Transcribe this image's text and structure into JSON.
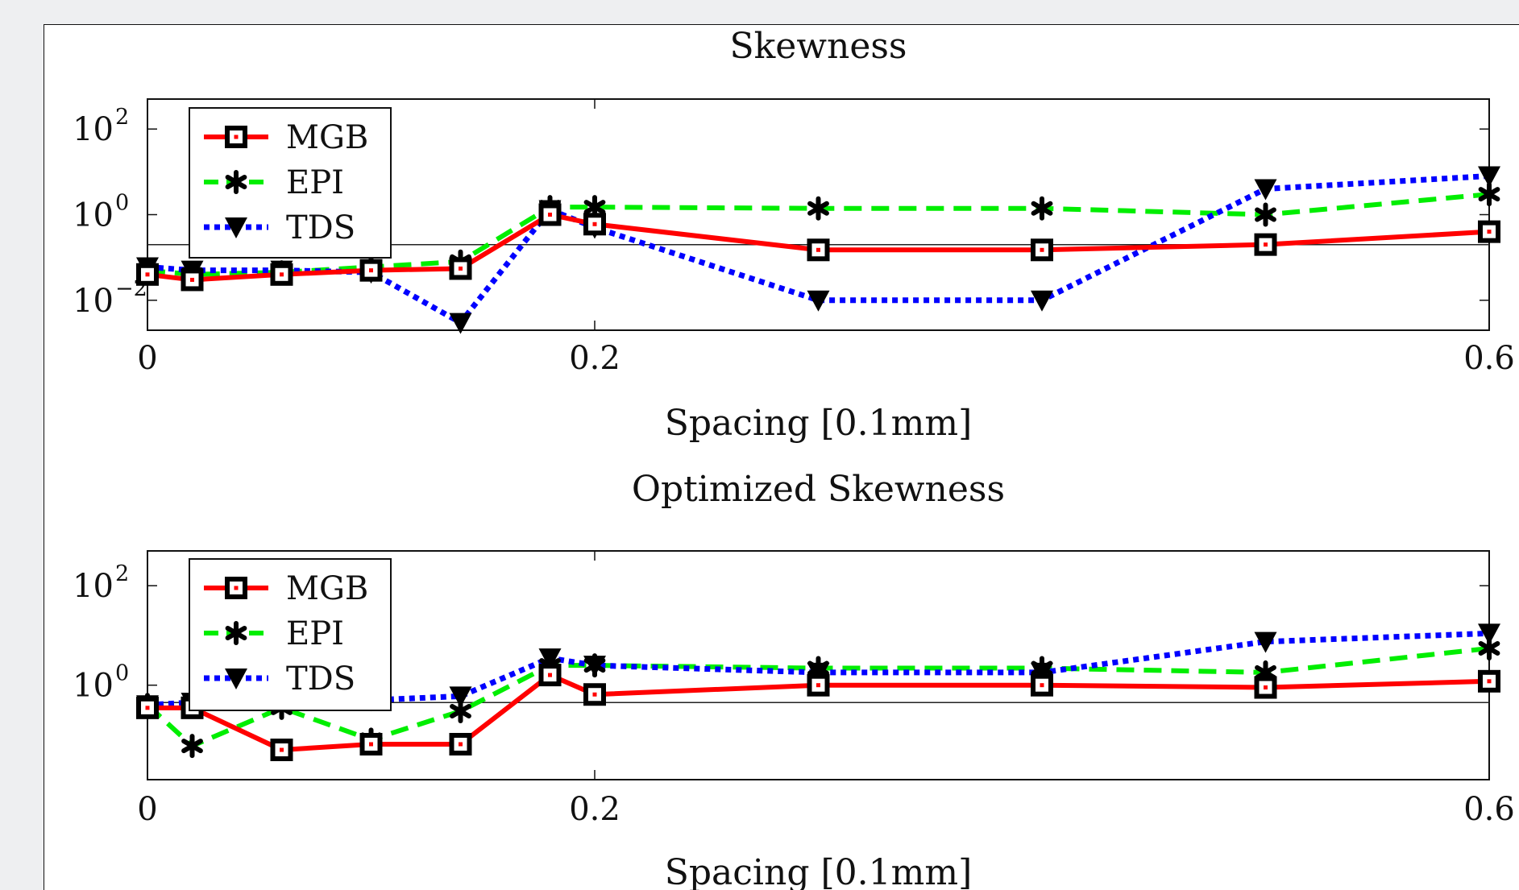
{
  "colors": {
    "background": "#eeeff1",
    "paper": "#ffffff",
    "MGB": "#ff0000",
    "EPI": "#00ee00",
    "TDS": "#0000ff"
  },
  "chart_data": [
    {
      "type": "line",
      "title": "Skewness",
      "xlabel": "Spacing [0.1mm]",
      "ylabel": "",
      "y_scale": "log",
      "xlim": [
        0,
        0.6
      ],
      "ylim_log10": [
        -2.7,
        2.7
      ],
      "x_ticks": [
        {
          "value": 0,
          "label": "0"
        },
        {
          "value": 0.2,
          "label": "0.2"
        },
        {
          "value": 0.6,
          "label": "0.6"
        }
      ],
      "y_ticks": [
        {
          "exp": 2,
          "base": "10",
          "sup": "2"
        },
        {
          "exp": 0,
          "base": "10",
          "sup": "0"
        },
        {
          "exp": -2,
          "base": "10",
          "sup": "−2"
        }
      ],
      "reference_line_log10": -0.7,
      "legend_position": "top-left",
      "x": [
        0,
        0.02,
        0.06,
        0.1,
        0.14,
        0.18,
        0.2,
        0.3,
        0.4,
        0.5,
        0.6
      ],
      "series": [
        {
          "name": "MGB",
          "style": "solid",
          "marker": "square",
          "values": [
            0.04,
            0.03,
            0.04,
            0.05,
            0.055,
            1.0,
            0.6,
            0.15,
            0.15,
            0.2,
            0.4
          ]
        },
        {
          "name": "EPI",
          "style": "dashed",
          "marker": "asterisk",
          "values": [
            0.05,
            0.04,
            0.045,
            0.06,
            0.08,
            1.5,
            1.5,
            1.4,
            1.4,
            1.0,
            3.0
          ]
        },
        {
          "name": "TDS",
          "style": "dotted",
          "marker": "triangle-down",
          "values": [
            0.06,
            0.05,
            0.05,
            0.045,
            0.003,
            1.3,
            0.5,
            0.01,
            0.01,
            4.0,
            8.0
          ]
        }
      ]
    },
    {
      "type": "line",
      "title": "Optimized Skewness",
      "xlabel": "Spacing [0.1mm]",
      "ylabel": "",
      "y_scale": "log",
      "xlim": [
        0,
        0.6
      ],
      "ylim_log10": [
        -1.9,
        2.7
      ],
      "x_ticks": [
        {
          "value": 0,
          "label": "0"
        },
        {
          "value": 0.2,
          "label": "0.2"
        },
        {
          "value": 0.6,
          "label": "0.6"
        }
      ],
      "y_ticks": [
        {
          "exp": 2,
          "base": "10",
          "sup": "2"
        },
        {
          "exp": 0,
          "base": "10",
          "sup": "0"
        }
      ],
      "reference_line_log10": -0.35,
      "legend_position": "top-left",
      "x": [
        0,
        0.02,
        0.06,
        0.1,
        0.14,
        0.18,
        0.2,
        0.3,
        0.4,
        0.5,
        0.6
      ],
      "series": [
        {
          "name": "MGB",
          "style": "solid",
          "marker": "square",
          "values": [
            0.35,
            0.35,
            0.05,
            0.065,
            0.065,
            1.6,
            0.65,
            1.0,
            1.0,
            0.9,
            1.2
          ]
        },
        {
          "name": "EPI",
          "style": "dashed",
          "marker": "asterisk",
          "values": [
            0.4,
            0.06,
            0.35,
            0.08,
            0.3,
            2.5,
            2.5,
            2.2,
            2.2,
            1.8,
            5.5
          ]
        },
        {
          "name": "TDS",
          "style": "dotted",
          "marker": "triangle-down",
          "values": [
            0.4,
            0.45,
            0.5,
            0.5,
            0.6,
            3.5,
            2.5,
            1.8,
            1.8,
            7.5,
            11.0
          ]
        }
      ]
    }
  ]
}
